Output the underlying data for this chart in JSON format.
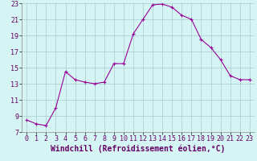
{
  "x": [
    0,
    1,
    2,
    3,
    4,
    5,
    6,
    7,
    8,
    9,
    10,
    11,
    12,
    13,
    14,
    15,
    16,
    17,
    18,
    19,
    20,
    21,
    22,
    23
  ],
  "y": [
    8.5,
    8.0,
    7.8,
    10.0,
    14.5,
    13.5,
    13.2,
    13.0,
    13.2,
    15.5,
    15.5,
    19.2,
    21.0,
    22.8,
    22.9,
    22.5,
    21.5,
    21.0,
    18.5,
    17.5,
    16.0,
    14.0,
    13.5,
    13.5
  ],
  "xlabel": "Windchill (Refroidissement éolien,°C)",
  "xlim": [
    0,
    23
  ],
  "ylim": [
    7,
    23
  ],
  "yticks": [
    7,
    9,
    11,
    13,
    15,
    17,
    19,
    21,
    23
  ],
  "xticks": [
    0,
    1,
    2,
    3,
    4,
    5,
    6,
    7,
    8,
    9,
    10,
    11,
    12,
    13,
    14,
    15,
    16,
    17,
    18,
    19,
    20,
    21,
    22,
    23
  ],
  "line_color": "#990099",
  "marker": "+",
  "bg_color": "#d5f5f5",
  "grid_color": "#aacccc",
  "tick_label_fontsize": 6.0,
  "xlabel_fontsize": 7.0
}
